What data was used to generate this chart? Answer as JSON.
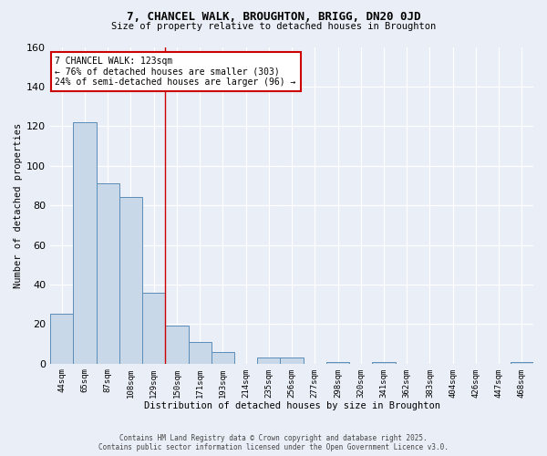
{
  "title": "7, CHANCEL WALK, BROUGHTON, BRIGG, DN20 0JD",
  "subtitle": "Size of property relative to detached houses in Broughton",
  "xlabel": "Distribution of detached houses by size in Broughton",
  "ylabel": "Number of detached properties",
  "categories": [
    "44sqm",
    "65sqm",
    "87sqm",
    "108sqm",
    "129sqm",
    "150sqm",
    "171sqm",
    "193sqm",
    "214sqm",
    "235sqm",
    "256sqm",
    "277sqm",
    "298sqm",
    "320sqm",
    "341sqm",
    "362sqm",
    "383sqm",
    "404sqm",
    "426sqm",
    "447sqm",
    "468sqm"
  ],
  "values": [
    25,
    122,
    91,
    84,
    36,
    19,
    11,
    6,
    0,
    3,
    3,
    0,
    1,
    0,
    1,
    0,
    0,
    0,
    0,
    0,
    1
  ],
  "bar_color": "#c8d8e8",
  "bar_edge_color": "#5b8db8",
  "background_color": "#eaeff7",
  "grid_color": "#ffffff",
  "red_line_index": 4.5,
  "annotation_text": "7 CHANCEL WALK: 123sqm\n← 76% of detached houses are smaller (303)\n24% of semi-detached houses are larger (96) →",
  "annotation_box_color": "#ffffff",
  "annotation_box_edge": "#cc0000",
  "ylim": [
    0,
    160
  ],
  "yticks": [
    0,
    20,
    40,
    60,
    80,
    100,
    120,
    140,
    160
  ],
  "footer1": "Contains HM Land Registry data © Crown copyright and database right 2025.",
  "footer2": "Contains public sector information licensed under the Open Government Licence v3.0."
}
